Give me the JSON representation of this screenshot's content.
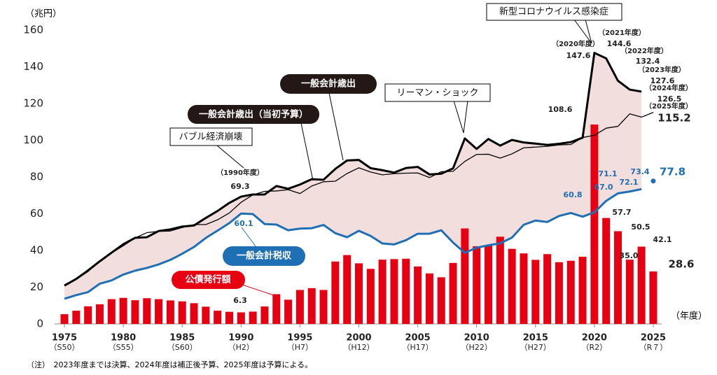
{
  "chart_data": {
    "type": "combo",
    "unit_label": "（兆円）",
    "x_unit_label": "（年度）",
    "note": "（注）　2023年度までは決算、2024年度は補正後予算、2025年度は予算による。",
    "years": [
      1975,
      1976,
      1977,
      1978,
      1979,
      1980,
      1981,
      1982,
      1983,
      1984,
      1985,
      1986,
      1987,
      1988,
      1989,
      1990,
      1991,
      1992,
      1993,
      1994,
      1995,
      1996,
      1997,
      1998,
      1999,
      2000,
      2001,
      2002,
      2003,
      2004,
      2005,
      2006,
      2007,
      2008,
      2009,
      2010,
      2011,
      2012,
      2013,
      2014,
      2015,
      2016,
      2017,
      2018,
      2019,
      2020,
      2021,
      2022,
      2023,
      2024,
      2025
    ],
    "series": [
      {
        "name": "公債発行額",
        "kind": "bar",
        "color": "#e60012",
        "values": [
          5.3,
          7.2,
          9.6,
          10.7,
          13.5,
          14.2,
          12.9,
          14.0,
          13.5,
          12.8,
          12.3,
          11.3,
          9.4,
          7.2,
          6.6,
          6.3,
          6.7,
          9.5,
          16.2,
          13.2,
          18.5,
          19.5,
          18.5,
          34.0,
          37.5,
          33.0,
          30.0,
          35.0,
          35.3,
          35.5,
          31.3,
          27.5,
          25.4,
          33.2,
          52.0,
          42.3,
          42.8,
          47.5,
          40.9,
          38.4,
          34.9,
          38.0,
          33.6,
          34.4,
          36.6,
          108.6,
          57.7,
          50.5,
          35.0,
          42.1,
          28.6
        ],
        "value_labels": [
          null,
          null,
          null,
          null,
          null,
          null,
          null,
          null,
          null,
          null,
          null,
          null,
          null,
          null,
          null,
          "6.3",
          null,
          null,
          null,
          null,
          null,
          null,
          null,
          null,
          null,
          null,
          null,
          null,
          null,
          null,
          null,
          null,
          null,
          null,
          null,
          null,
          null,
          null,
          null,
          null,
          null,
          null,
          null,
          null,
          null,
          "108.6",
          "57.7",
          "50.5",
          "35.0",
          "42.1",
          "28.6"
        ]
      },
      {
        "name": "一般会計歳出",
        "kind": "line",
        "color": "#000000",
        "width": 3,
        "values": [
          20.9,
          24.5,
          29.1,
          34.1,
          38.8,
          43.4,
          46.9,
          47.2,
          50.6,
          51.5,
          53.0,
          53.6,
          57.7,
          61.5,
          65.9,
          69.3,
          70.5,
          70.5,
          75.1,
          73.6,
          75.9,
          78.8,
          78.5,
          84.4,
          89.0,
          89.3,
          84.8,
          83.7,
          82.4,
          84.9,
          85.5,
          81.4,
          81.8,
          84.7,
          101.0,
          95.3,
          100.7,
          97.1,
          100.2,
          98.8,
          98.2,
          97.5,
          98.1,
          99.0,
          101.4,
          147.6,
          144.6,
          132.4,
          127.6,
          126.5,
          null
        ],
        "value_labels": [
          null,
          null,
          null,
          null,
          null,
          null,
          null,
          null,
          null,
          null,
          null,
          null,
          null,
          null,
          null,
          "69.3",
          null,
          null,
          null,
          null,
          null,
          null,
          null,
          null,
          null,
          null,
          null,
          null,
          null,
          null,
          null,
          null,
          null,
          null,
          null,
          null,
          null,
          null,
          null,
          null,
          null,
          null,
          null,
          null,
          null,
          "147.6",
          "144.6",
          "132.4",
          "127.6",
          "126.5",
          null
        ]
      },
      {
        "name": "一般会計歳出（当初予算）",
        "kind": "line",
        "color": "#000000",
        "width": 1.3,
        "values": [
          21.3,
          24.3,
          28.5,
          34.3,
          38.6,
          42.6,
          46.8,
          49.7,
          50.4,
          50.6,
          52.5,
          54.1,
          54.1,
          56.7,
          60.4,
          66.2,
          70.3,
          72.2,
          72.4,
          73.1,
          71.0,
          75.1,
          77.4,
          77.7,
          81.9,
          85.0,
          82.7,
          81.2,
          81.8,
          82.1,
          82.2,
          79.7,
          82.9,
          83.1,
          88.5,
          92.3,
          92.4,
          90.3,
          92.6,
          95.9,
          96.3,
          96.7,
          97.5,
          97.7,
          101.5,
          102.7,
          106.6,
          107.6,
          114.4,
          112.6,
          115.2
        ],
        "value_labels": [
          null,
          null,
          null,
          null,
          null,
          null,
          null,
          null,
          null,
          null,
          null,
          null,
          null,
          null,
          null,
          null,
          null,
          null,
          null,
          null,
          null,
          null,
          null,
          null,
          null,
          null,
          null,
          null,
          null,
          null,
          null,
          null,
          null,
          null,
          null,
          null,
          null,
          null,
          null,
          null,
          null,
          null,
          null,
          null,
          null,
          null,
          null,
          null,
          null,
          null,
          "115.2"
        ]
      },
      {
        "name": "一般会計税収",
        "kind": "line",
        "color": "#1f6fb5",
        "width": 3,
        "values": [
          13.7,
          15.7,
          17.3,
          21.9,
          23.7,
          26.9,
          29.0,
          30.5,
          32.4,
          34.9,
          38.2,
          41.9,
          46.8,
          50.8,
          54.9,
          60.1,
          59.8,
          54.4,
          54.1,
          51.0,
          51.9,
          52.1,
          53.9,
          49.4,
          47.2,
          50.7,
          47.9,
          43.8,
          43.3,
          45.6,
          49.1,
          49.1,
          51.0,
          44.3,
          38.7,
          41.5,
          42.8,
          43.9,
          47.0,
          54.0,
          56.3,
          55.5,
          58.8,
          60.4,
          58.4,
          60.8,
          67.0,
          71.1,
          72.1,
          73.4,
          null
        ],
        "value_labels": [
          null,
          null,
          null,
          null,
          null,
          null,
          null,
          null,
          null,
          null,
          null,
          null,
          null,
          null,
          null,
          "60.1",
          null,
          null,
          null,
          null,
          null,
          null,
          null,
          null,
          null,
          null,
          null,
          null,
          null,
          null,
          null,
          null,
          null,
          null,
          null,
          null,
          null,
          null,
          null,
          null,
          null,
          null,
          null,
          null,
          null,
          "60.8",
          "67.0",
          "71.1",
          "72.1",
          "73.4",
          null
        ]
      }
    ],
    "estimate": {
      "x": 2025,
      "value": 77.8,
      "color": "#1f6fb5"
    },
    "area_color": "#f3dede",
    "year_tags": [
      "（1990年度）",
      "（2020年度）",
      "（2021年度）",
      "（2022年度）",
      "（2023年度）",
      "（2024年度）",
      "（2025年度）"
    ],
    "events": [
      "新型コロナウイルス感染症",
      "バブル経済崩壊",
      "リーマン・ショック"
    ],
    "xlim": [
      1974,
      2026
    ],
    "xticks": [
      1975,
      1980,
      1985,
      1990,
      1995,
      2000,
      2005,
      2010,
      2015,
      2020,
      2025
    ],
    "xtick_sublabels": [
      "（S50）",
      "（S55）",
      "（S60）",
      "（H2）",
      "（H7）",
      "（H12）",
      "（H17）",
      "（H22）",
      "（H27）",
      "（R2）",
      "（R７）"
    ],
    "ylim": [
      0,
      160
    ],
    "yticks": [
      0,
      20,
      40,
      60,
      80,
      100,
      120,
      140,
      160
    ]
  }
}
